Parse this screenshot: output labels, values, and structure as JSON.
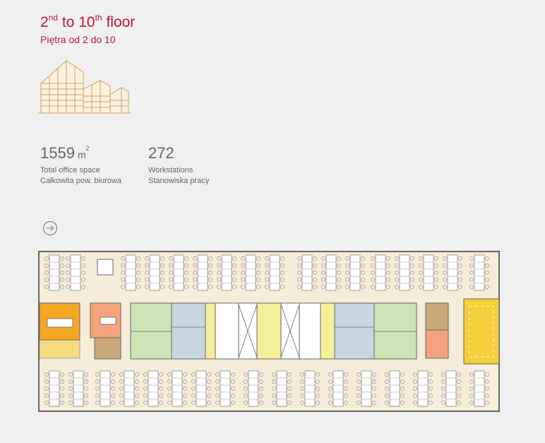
{
  "header": {
    "title_part1": "2",
    "title_sup1": "nd",
    "title_part2": " to 10",
    "title_sup2": "th",
    "title_part3": " floor",
    "subtitle": "Piętra od 2 do 10"
  },
  "stats": [
    {
      "value": "1559",
      "unit": "m",
      "unit_sup": "2",
      "label_en": "Total office space",
      "label_pl": "Całkowita pow. biurowa"
    },
    {
      "value": "272",
      "label_en": "Workstations",
      "label_pl": "Stanowiska pracy"
    }
  ],
  "icons": {
    "next": "arrow-right-circle-icon",
    "building": "building-illustration-icon"
  },
  "colors": {
    "title": "#c0143c",
    "floor": "#f5ecd9",
    "wall": "#666666",
    "desk": "#ffffff",
    "orange": "#f5a623",
    "salmon": "#f4a27c",
    "brown": "#c9a97a",
    "green": "#cde3b5",
    "blue": "#c7d7e1",
    "yellow": "#f4ef9b",
    "gold": "#f5cf3a"
  }
}
